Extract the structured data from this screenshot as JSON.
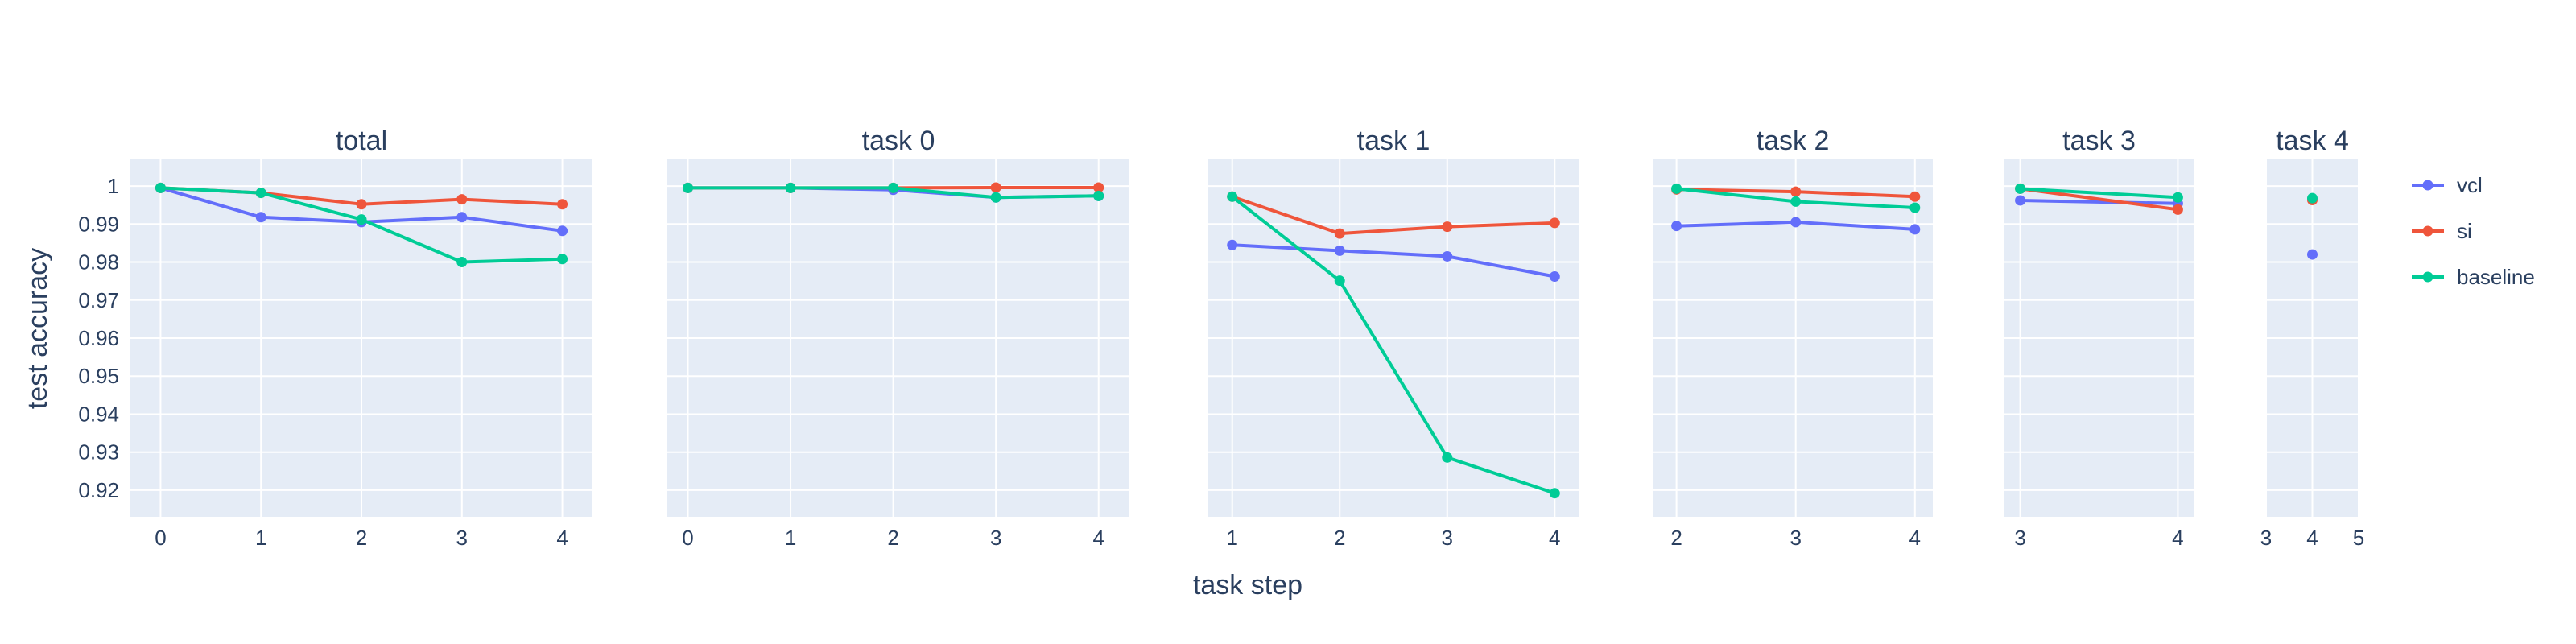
{
  "chart_data": {
    "type": "line",
    "xlabel": "task step",
    "ylabel": "test accuracy",
    "ylim": [
      0.913,
      1.007
    ],
    "yticks": [
      0.92,
      0.93,
      0.94,
      0.95,
      0.96,
      0.97,
      0.98,
      0.99,
      1
    ],
    "ytick_labels": [
      "0.92",
      "0.93",
      "0.94",
      "0.95",
      "0.96",
      "0.97",
      "0.98",
      "0.99",
      "1"
    ],
    "grid": true,
    "legend_position": "right",
    "series_colors": {
      "vcl": "#636EFA",
      "si": "#EF553B",
      "baseline": "#00CC96"
    },
    "legend": [
      {
        "name": "vcl",
        "color": "#636EFA"
      },
      {
        "name": "si",
        "color": "#EF553B"
      },
      {
        "name": "baseline",
        "color": "#00CC96"
      }
    ],
    "panels": [
      {
        "title": "total",
        "xlim": [
          -0.3,
          4.3
        ],
        "xticks": [
          0,
          1,
          2,
          3,
          4
        ],
        "series": [
          {
            "name": "vcl",
            "x": [
              0,
              1,
              2,
              3,
              4
            ],
            "y": [
              0.9995,
              0.9918,
              0.9905,
              0.9918,
              0.9882
            ]
          },
          {
            "name": "si",
            "x": [
              0,
              1,
              2,
              3,
              4
            ],
            "y": [
              0.9995,
              0.9982,
              0.9952,
              0.9965,
              0.9952
            ]
          },
          {
            "name": "baseline",
            "x": [
              0,
              1,
              2,
              3,
              4
            ],
            "y": [
              0.9995,
              0.9982,
              0.9912,
              0.98,
              0.9808
            ]
          }
        ]
      },
      {
        "title": "task 0",
        "xlim": [
          -0.2,
          4.3
        ],
        "xticks": [
          0,
          1,
          2,
          3,
          4
        ],
        "series": [
          {
            "name": "vcl",
            "x": [
              0,
              1,
              2,
              3,
              4
            ],
            "y": [
              0.9995,
              0.9995,
              0.999,
              0.997,
              0.9974
            ]
          },
          {
            "name": "si",
            "x": [
              0,
              1,
              2,
              3,
              4
            ],
            "y": [
              0.9995,
              0.9995,
              0.9995,
              0.9996,
              0.9996
            ]
          },
          {
            "name": "baseline",
            "x": [
              0,
              1,
              2,
              3,
              4
            ],
            "y": [
              0.9995,
              0.9995,
              0.9995,
              0.997,
              0.9974
            ]
          }
        ]
      },
      {
        "title": "task 1",
        "xlim": [
          0.77,
          4.23
        ],
        "xticks": [
          1,
          2,
          3,
          4
        ],
        "series": [
          {
            "name": "vcl",
            "x": [
              1,
              2,
              3,
              4
            ],
            "y": [
              0.9845,
              0.983,
              0.9815,
              0.9762
            ]
          },
          {
            "name": "si",
            "x": [
              1,
              2,
              3,
              4
            ],
            "y": [
              0.9972,
              0.9875,
              0.9893,
              0.9903
            ]
          },
          {
            "name": "baseline",
            "x": [
              1,
              2,
              3,
              4
            ],
            "y": [
              0.9972,
              0.9751,
              0.9286,
              0.9192
            ]
          }
        ]
      },
      {
        "title": "task 2",
        "xlim": [
          1.8,
          4.15
        ],
        "xticks": [
          2,
          3,
          4
        ],
        "series": [
          {
            "name": "vcl",
            "x": [
              2,
              3,
              4
            ],
            "y": [
              0.9895,
              0.9905,
              0.9886
            ]
          },
          {
            "name": "si",
            "x": [
              2,
              3,
              4
            ],
            "y": [
              0.9991,
              0.9985,
              0.9972
            ]
          },
          {
            "name": "baseline",
            "x": [
              2,
              3,
              4
            ],
            "y": [
              0.9993,
              0.9959,
              0.9943
            ]
          }
        ]
      },
      {
        "title": "task 3",
        "xlim": [
          2.9,
          4.1
        ],
        "xticks": [
          3,
          4
        ],
        "series": [
          {
            "name": "vcl",
            "x": [
              3,
              4
            ],
            "y": [
              0.9962,
              0.9954
            ]
          },
          {
            "name": "si",
            "x": [
              3,
              4
            ],
            "y": [
              0.9993,
              0.9938
            ]
          },
          {
            "name": "baseline",
            "x": [
              3,
              4
            ],
            "y": [
              0.9993,
              0.997
            ]
          }
        ]
      },
      {
        "title": "task 4",
        "xlim": [
          3,
          5
        ],
        "xticks": [
          3,
          4,
          5
        ],
        "series": [
          {
            "name": "vcl",
            "x": [
              4
            ],
            "y": [
              0.982
            ]
          },
          {
            "name": "si",
            "x": [
              4
            ],
            "y": [
              0.9963
            ]
          },
          {
            "name": "baseline",
            "x": [
              4
            ],
            "y": [
              0.9968
            ]
          }
        ]
      }
    ]
  }
}
